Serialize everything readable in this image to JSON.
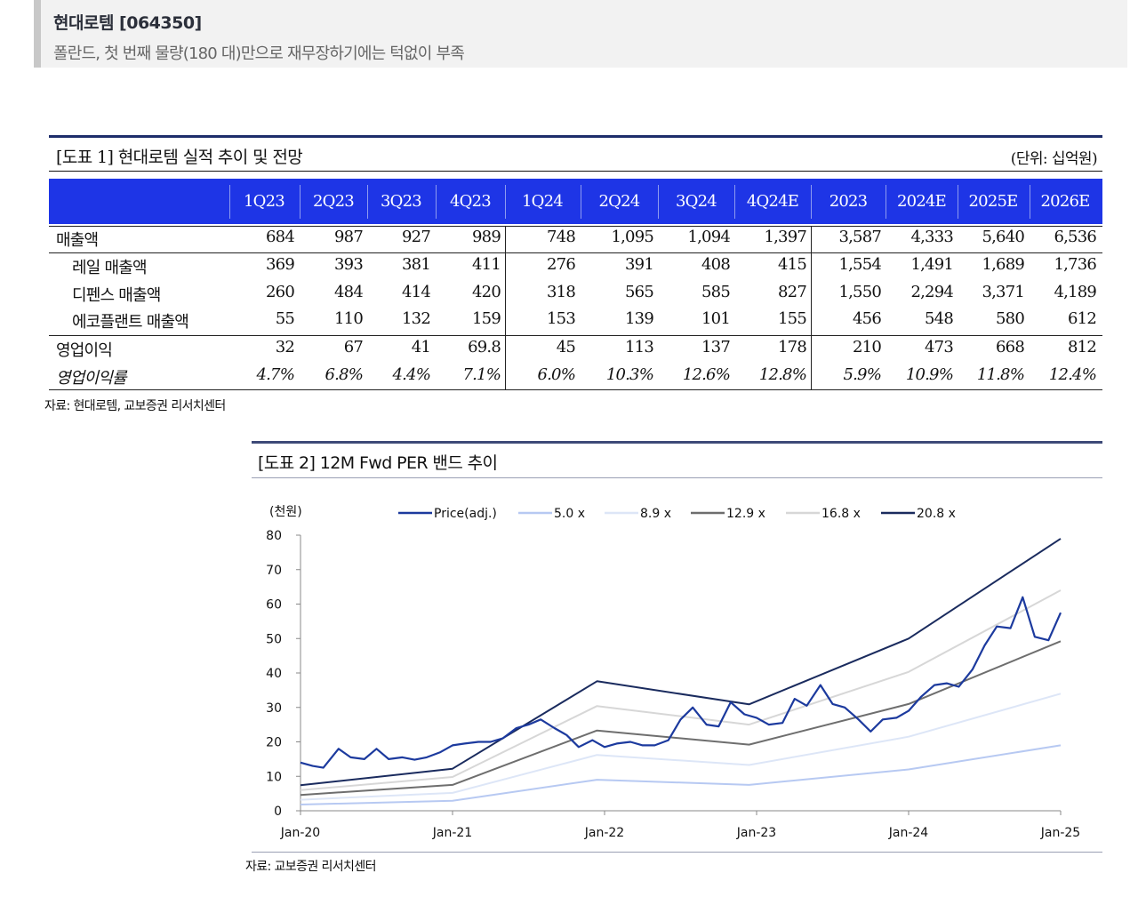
{
  "header": {
    "title": "현대로템 [064350]",
    "subtitle": "폴란드, 첫 번째 물량(180 대)만으로 재무장하기에는 턱없이 부족"
  },
  "table1": {
    "title": "[도표 1] 현대로템 실적 추이 및 전망",
    "unit": "(단위: 십억원)",
    "columns": [
      "1Q23",
      "2Q23",
      "3Q23",
      "4Q23",
      "1Q24",
      "2Q24",
      "3Q24",
      "4Q24E",
      "2023",
      "2024E",
      "2025E",
      "2026E"
    ],
    "rows": [
      {
        "label": "매출액",
        "values": [
          "684",
          "987",
          "927",
          "989",
          "748",
          "1,095",
          "1,094",
          "1,397",
          "3,587",
          "4,333",
          "5,640",
          "6,536"
        ]
      },
      {
        "label": "레일 매출액",
        "values": [
          "369",
          "393",
          "381",
          "411",
          "276",
          "391",
          "408",
          "415",
          "1,554",
          "1,491",
          "1,689",
          "1,736"
        ]
      },
      {
        "label": "디펜스 매출액",
        "values": [
          "260",
          "484",
          "414",
          "420",
          "318",
          "565",
          "585",
          "827",
          "1,550",
          "2,294",
          "3,371",
          "4,189"
        ]
      },
      {
        "label": "에코플랜트 매출액",
        "values": [
          "55",
          "110",
          "132",
          "159",
          "153",
          "139",
          "101",
          "155",
          "456",
          "548",
          "580",
          "612"
        ]
      },
      {
        "label": "영업이익",
        "values": [
          "32",
          "67",
          "41",
          "69.8",
          "45",
          "113",
          "137",
          "178",
          "210",
          "473",
          "668",
          "812"
        ]
      },
      {
        "label": "영업이익률",
        "values": [
          "4.7%",
          "6.8%",
          "4.4%",
          "7.1%",
          "6.0%",
          "10.3%",
          "12.6%",
          "12.8%",
          "5.9%",
          "10.9%",
          "11.8%",
          "12.4%"
        ]
      }
    ],
    "source": "자료: 현대로템, 교보증권 리서치센터"
  },
  "chart_data": {
    "type": "line",
    "title": "[도표 2] 12M Fwd PER 밴드 추이",
    "ylabel": "(천원)",
    "ylim": [
      0,
      80
    ],
    "yticks": [
      "0",
      "10",
      "20",
      "30",
      "40",
      "50",
      "60",
      "70",
      "80"
    ],
    "xlim": [
      2020,
      2025
    ],
    "xticks": [
      "Jan-20",
      "Jan-21",
      "Jan-22",
      "Jan-23",
      "Jan-24",
      "Jan-25"
    ],
    "source": "자료: 교보증권 리서치센터",
    "colors": {
      "price": "#1c3a9e",
      "band5": "#b7c9f2",
      "band89": "#dde6f7",
      "band129": "#6e6e6e",
      "band168": "#d7d7d7",
      "band208": "#1a2b5e"
    },
    "series": [
      {
        "name": "Price(adj.)",
        "key": "price",
        "x": [
          2020.0,
          2020.08,
          2020.15,
          2020.25,
          2020.33,
          2020.42,
          2020.5,
          2020.58,
          2020.67,
          2020.75,
          2020.83,
          2020.92,
          2021.0,
          2021.08,
          2021.17,
          2021.25,
          2021.33,
          2021.42,
          2021.5,
          2021.58,
          2021.67,
          2021.75,
          2021.83,
          2021.92,
          2022.0,
          2022.08,
          2022.17,
          2022.25,
          2022.33,
          2022.42,
          2022.5,
          2022.58,
          2022.67,
          2022.75,
          2022.83,
          2022.92,
          2023.0,
          2023.08,
          2023.17,
          2023.25,
          2023.33,
          2023.42,
          2023.5,
          2023.58,
          2023.67,
          2023.75,
          2023.83,
          2023.92,
          2024.0,
          2024.08,
          2024.17,
          2024.25,
          2024.33,
          2024.42,
          2024.5,
          2024.58,
          2024.67,
          2024.75,
          2024.83,
          2024.92,
          2025.0
        ],
        "values": [
          14.0,
          13.0,
          12.5,
          18.0,
          15.5,
          15.0,
          18.0,
          15.0,
          15.5,
          14.8,
          15.5,
          17.0,
          19.0,
          19.5,
          20.0,
          20.0,
          21.0,
          24.0,
          25.0,
          26.5,
          24.0,
          22.0,
          18.5,
          20.5,
          18.5,
          19.5,
          20.0,
          19.0,
          19.0,
          20.5,
          26.5,
          30.0,
          25.0,
          24.5,
          31.5,
          28.0,
          27.0,
          25.0,
          25.5,
          32.5,
          30.5,
          36.5,
          31.0,
          30.0,
          26.5,
          23.0,
          26.5,
          27.0,
          29.0,
          33.0,
          36.5,
          37.0,
          36.0,
          41.0,
          48.0,
          53.5,
          53.0,
          62.0,
          50.5,
          49.5,
          57.5
        ]
      },
      {
        "name": "5.0 x",
        "key": "band5",
        "x": [
          2020.0,
          2021.0,
          2021.95,
          2022.95,
          2024.0,
          2025.0
        ],
        "values": [
          1.8,
          2.9,
          9.0,
          7.5,
          12.0,
          19.0
        ]
      },
      {
        "name": "8.9 x",
        "key": "band89",
        "x": [
          2020.0,
          2021.0,
          2021.95,
          2022.95,
          2024.0,
          2025.0
        ],
        "values": [
          3.2,
          5.2,
          16.2,
          13.3,
          21.5,
          34.0
        ]
      },
      {
        "name": "12.9 x",
        "key": "band129",
        "x": [
          2020.0,
          2021.0,
          2021.95,
          2022.95,
          2024.0,
          2025.0
        ],
        "values": [
          4.6,
          7.5,
          23.3,
          19.2,
          31.0,
          49.2
        ]
      },
      {
        "name": "16.8 x",
        "key": "band168",
        "x": [
          2020.0,
          2021.0,
          2021.95,
          2022.95,
          2024.0,
          2025.0
        ],
        "values": [
          6.0,
          9.8,
          30.4,
          25.0,
          40.3,
          64.0
        ]
      },
      {
        "name": "20.8 x",
        "key": "band208",
        "x": [
          2020.0,
          2021.0,
          2021.95,
          2022.95,
          2024.0,
          2025.0
        ],
        "values": [
          7.4,
          12.2,
          37.6,
          30.9,
          50.0,
          79.0
        ]
      }
    ]
  }
}
